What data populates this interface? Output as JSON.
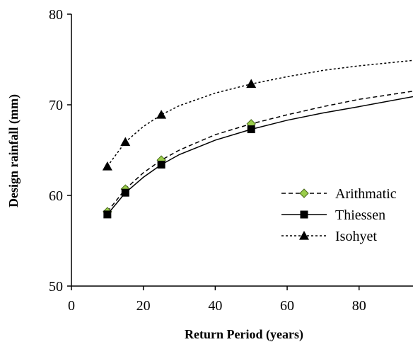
{
  "chart_data": {
    "type": "line",
    "xlabel": "Return  Period (years)",
    "ylabel": "Design rainfall  (mm)",
    "xlim": [
      0,
      95
    ],
    "ylim": [
      50,
      80
    ],
    "x_ticks": [
      "0",
      "20",
      "40",
      "60",
      "80"
    ],
    "y_ticks": [
      "50",
      "60",
      "70",
      "80"
    ],
    "grid": false,
    "legend_position": "right",
    "series": [
      {
        "name": "Arithmatic",
        "x": [
          10,
          15,
          25,
          50
        ],
        "y": [
          58.2,
          60.7,
          63.9,
          67.9
        ],
        "trend_x": [
          10,
          15,
          20,
          25,
          30,
          40,
          50,
          60,
          70,
          80,
          95
        ],
        "trend_y": [
          58.2,
          60.7,
          62.5,
          63.9,
          65.0,
          66.7,
          67.9,
          68.9,
          69.8,
          70.6,
          71.5
        ],
        "marker": "diamond",
        "marker_color": "#9acd4a",
        "line_style": "dashed"
      },
      {
        "name": "Thiessen",
        "x": [
          10,
          15,
          25,
          50
        ],
        "y": [
          57.9,
          60.3,
          63.4,
          67.3
        ],
        "trend_x": [
          10,
          15,
          20,
          25,
          30,
          40,
          50,
          60,
          70,
          80,
          95
        ],
        "trend_y": [
          57.9,
          60.3,
          62.0,
          63.4,
          64.5,
          66.1,
          67.3,
          68.3,
          69.1,
          69.8,
          70.9
        ],
        "marker": "square",
        "marker_color": "#000000",
        "line_style": "solid"
      },
      {
        "name": "Isohyet",
        "x": [
          10,
          15,
          25,
          50
        ],
        "y": [
          63.2,
          65.9,
          68.9,
          72.3
        ],
        "trend_x": [
          10,
          15,
          20,
          25,
          30,
          40,
          50,
          60,
          70,
          80,
          95
        ],
        "trend_y": [
          63.2,
          65.9,
          67.6,
          68.9,
          69.9,
          71.3,
          72.3,
          73.1,
          73.8,
          74.3,
          74.9
        ],
        "marker": "triangle",
        "marker_color": "#000000",
        "line_style": "dotted"
      }
    ]
  }
}
